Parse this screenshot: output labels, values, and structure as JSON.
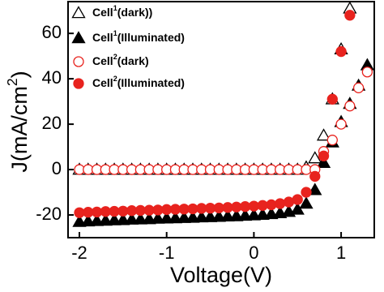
{
  "chart_data": {
    "type": "scatter",
    "xlabel": "Voltage(V)",
    "ylabel": "J(mA/cm2)",
    "x": [
      -2,
      -1.9,
      -1.8,
      -1.7,
      -1.6,
      -1.5,
      -1.4,
      -1.3,
      -1.2,
      -1.1,
      -1,
      -0.9,
      -0.8,
      -0.7,
      -0.6,
      -0.5,
      -0.4,
      -0.3,
      -0.2,
      -0.1,
      0,
      0.1,
      0.2,
      0.3,
      0.4,
      0.5,
      0.6,
      0.7,
      0.8,
      0.9,
      1,
      1.1,
      1.2,
      1.3
    ],
    "series": [
      {
        "name": "Cell1(dark))",
        "color": "#000000",
        "marker": "triangle",
        "filled": false,
        "values": [
          0,
          0,
          0,
          0,
          0,
          0,
          0,
          0,
          0,
          0,
          0,
          0,
          0,
          0,
          0,
          0,
          0,
          0,
          0,
          0,
          0,
          0,
          0,
          0,
          0,
          0,
          1,
          5,
          15,
          31,
          53,
          71,
          null,
          null
        ]
      },
      {
        "name": "Cell1(Illuminated)",
        "color": "#000000",
        "marker": "triangle",
        "filled": true,
        "values": [
          -23,
          -22.8,
          -22.6,
          -22.5,
          -22.3,
          -22.2,
          -22,
          -21.9,
          -21.8,
          -21.6,
          -21.5,
          -21.4,
          -21.3,
          -21.2,
          -21,
          -20.9,
          -20.8,
          -20.6,
          -20.5,
          -20.3,
          -20.1,
          -19.9,
          -19.6,
          -19.2,
          -18.6,
          -17.6,
          -15,
          -9,
          3,
          12,
          21,
          29,
          37,
          46
        ]
      },
      {
        "name": "Cell2(dark)",
        "color": "#e8231e",
        "marker": "circle",
        "filled": false,
        "values": [
          0,
          0,
          0,
          0,
          0,
          0,
          0,
          0,
          0,
          0,
          0,
          0,
          0,
          0,
          0,
          0,
          0,
          0,
          0,
          0,
          0,
          0,
          0,
          0,
          0,
          0,
          0,
          0,
          8,
          13,
          20,
          28,
          36,
          43
        ]
      },
      {
        "name": "Cell2(Illuminated)",
        "color": "#e8231e",
        "marker": "circle",
        "filled": true,
        "values": [
          -19,
          -18.8,
          -18.7,
          -18.5,
          -18.4,
          -18.3,
          -18.1,
          -18,
          -17.9,
          -17.8,
          -17.6,
          -17.5,
          -17.4,
          -17.3,
          -17.1,
          -17,
          -16.9,
          -16.7,
          -16.5,
          -16.3,
          -16.1,
          -15.8,
          -15.5,
          -15,
          -14.3,
          -13.2,
          -10,
          -3,
          6,
          31,
          52,
          68,
          null,
          null
        ]
      }
    ],
    "xlim": [
      -2.13,
      1.38
    ],
    "xticks": [
      -2,
      -1,
      0,
      1
    ],
    "ylim": [
      -30,
      74
    ],
    "yticks": [
      -20,
      0,
      20,
      40,
      60
    ],
    "grid": false,
    "legend": "upper left"
  }
}
